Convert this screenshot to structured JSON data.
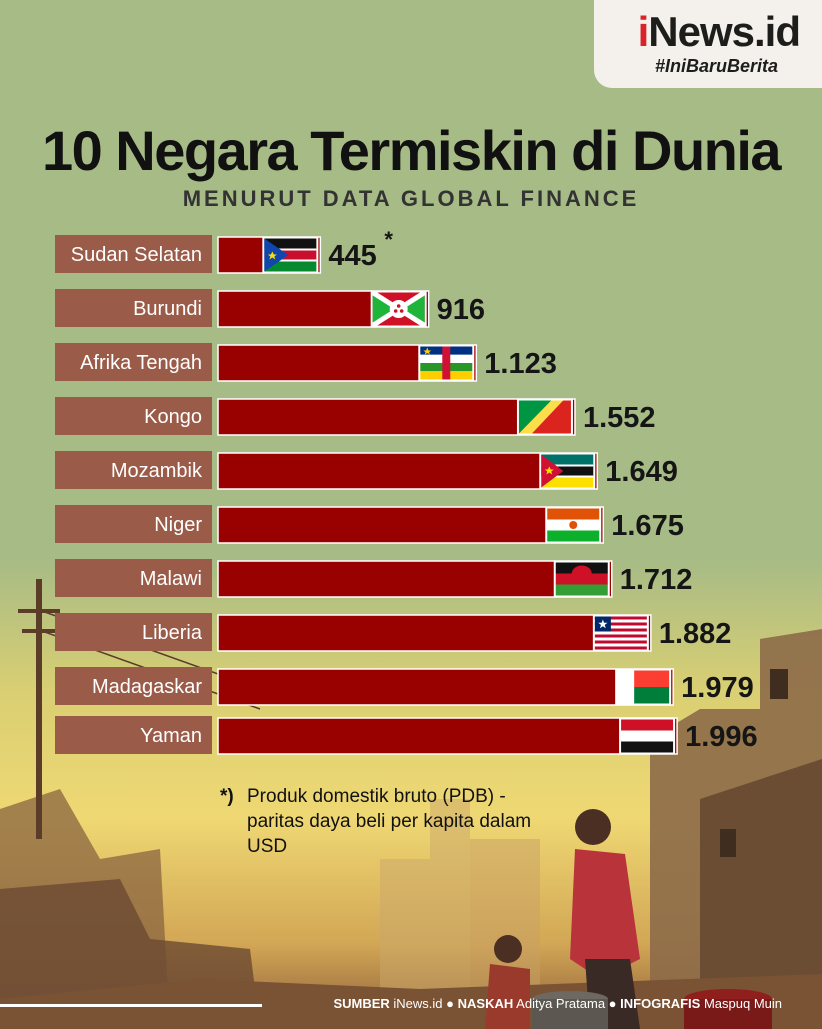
{
  "brand": {
    "name_prefix": "i",
    "name_rest": "News.id",
    "hashtag": "#IniBaruBerita"
  },
  "colors": {
    "bar": "#990000",
    "label_bg": "#9a5b48",
    "background": "#a7bb86"
  },
  "chart_data": {
    "type": "bar",
    "orientation": "horizontal",
    "title": "10 Negara Termiskin di Dunia",
    "subtitle": "MENURUT DATA GLOBAL FINANCE",
    "categories": [
      "Sudan Selatan",
      "Burundi",
      "Afrika Tengah",
      "Kongo",
      "Mozambik",
      "Niger",
      "Malawi",
      "Liberia",
      "Madagaskar",
      "Yaman"
    ],
    "values": [
      445,
      916,
      1123,
      1552,
      1649,
      1675,
      1712,
      1882,
      1979,
      1996
    ],
    "value_labels": [
      "445",
      "916",
      "1.123",
      "1.552",
      "1.649",
      "1.675",
      "1.712",
      "1.882",
      "1.979",
      "1.996"
    ],
    "flags": [
      "south-sudan-flag",
      "burundi-flag",
      "central-african-republic-flag",
      "congo-flag",
      "mozambique-flag",
      "niger-flag",
      "malawi-flag",
      "liberia-flag",
      "madagascar-flag",
      "yemen-flag"
    ],
    "annotation_marker": "*",
    "legend": "none",
    "grid": false
  },
  "note": {
    "marker": "*)",
    "text": "Produk domestik bruto (PDB) - paritas daya beli per kapita dalam USD"
  },
  "footer": {
    "source_label": "SUMBER",
    "source": "iNews.id",
    "writer_label": "NASKAH",
    "writer": "Aditya Pratama",
    "graphic_label": "INFOGRAFIS",
    "graphic": "Maspuq Muin",
    "separator": "●"
  }
}
